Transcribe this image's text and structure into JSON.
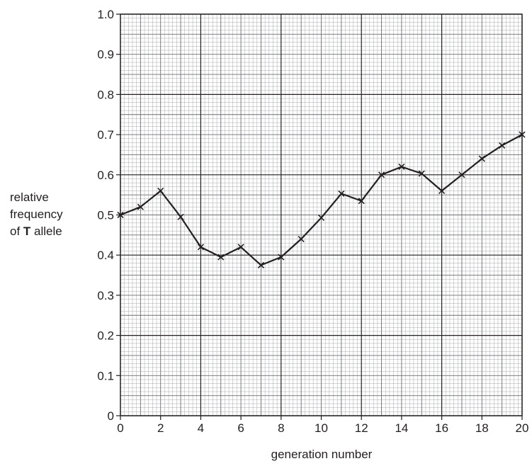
{
  "chart_data": {
    "type": "line",
    "title": "",
    "xlabel": "generation number",
    "ylabel": {
      "line1": "relative",
      "line2": "frequency",
      "line3_prefix": "of ",
      "line3_bold": "T",
      "line3_suffix": " allele"
    },
    "xlim": [
      0,
      20
    ],
    "ylim": [
      0,
      1.0
    ],
    "x_ticks": [
      "0",
      "2",
      "4",
      "6",
      "8",
      "10",
      "12",
      "14",
      "16",
      "18",
      "20"
    ],
    "y_ticks": [
      "0",
      "0.1",
      "0.2",
      "0.3",
      "0.4",
      "0.5",
      "0.6",
      "0.7",
      "0.8",
      "0.9",
      "1.0"
    ],
    "grid": true,
    "legend": "none",
    "marker": "x",
    "line_color": "#231f20",
    "series": [
      {
        "x": [
          0,
          1,
          2,
          3,
          4,
          5,
          6,
          7,
          8,
          9,
          10,
          11,
          12,
          13,
          14,
          15,
          16,
          17,
          18,
          19,
          20
        ],
        "values": [
          0.5,
          0.52,
          0.56,
          0.495,
          0.42,
          0.395,
          0.42,
          0.375,
          0.395,
          0.44,
          0.493,
          0.553,
          0.535,
          0.6,
          0.62,
          0.603,
          0.56,
          0.6,
          0.64,
          0.673,
          0.7
        ]
      }
    ]
  }
}
